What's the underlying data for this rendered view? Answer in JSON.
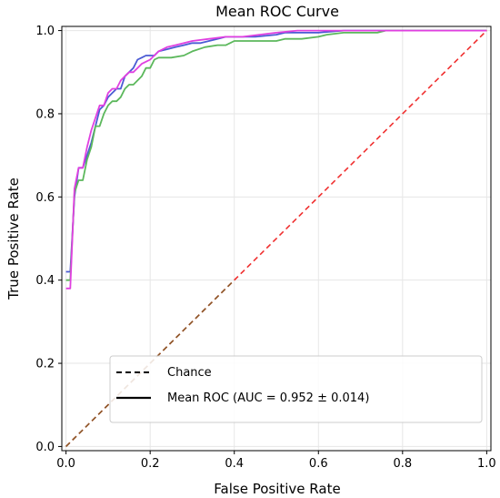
{
  "chart_data": {
    "type": "line",
    "title": "Mean ROC Curve",
    "xlabel": "False Positive Rate",
    "ylabel": "True Positive Rate",
    "xlim": [
      -0.01,
      1.01
    ],
    "ylim": [
      -0.01,
      1.01
    ],
    "xticks": [
      "0.0",
      "0.2",
      "0.4",
      "0.6",
      "0.8",
      "1.0"
    ],
    "yticks": [
      "0.0",
      "0.2",
      "0.4",
      "0.6",
      "0.8",
      "1.0"
    ],
    "grid": true,
    "legend": {
      "placement": "lower-right",
      "entries": [
        {
          "label": "Chance",
          "style": "dashed",
          "color": "#000000"
        },
        {
          "label": "Mean ROC (AUC = 0.952 ± 0.014)",
          "style": "solid",
          "color": "#000000"
        }
      ]
    },
    "series": [
      {
        "color": "#4b5bd4",
        "style": "solid",
        "points": [
          [
            0.0,
            0.42
          ],
          [
            0.01,
            0.42
          ],
          [
            0.02,
            0.6
          ],
          [
            0.03,
            0.67
          ],
          [
            0.04,
            0.67
          ],
          [
            0.05,
            0.7
          ],
          [
            0.06,
            0.73
          ],
          [
            0.07,
            0.77
          ],
          [
            0.08,
            0.81
          ],
          [
            0.09,
            0.82
          ],
          [
            0.1,
            0.84
          ],
          [
            0.11,
            0.85
          ],
          [
            0.12,
            0.86
          ],
          [
            0.13,
            0.86
          ],
          [
            0.14,
            0.89
          ],
          [
            0.15,
            0.9
          ],
          [
            0.16,
            0.91
          ],
          [
            0.17,
            0.93
          ],
          [
            0.18,
            0.935
          ],
          [
            0.19,
            0.94
          ],
          [
            0.2,
            0.94
          ],
          [
            0.21,
            0.94
          ],
          [
            0.22,
            0.95
          ],
          [
            0.24,
            0.955
          ],
          [
            0.26,
            0.96
          ],
          [
            0.28,
            0.965
          ],
          [
            0.3,
            0.97
          ],
          [
            0.32,
            0.97
          ],
          [
            0.34,
            0.975
          ],
          [
            0.36,
            0.98
          ],
          [
            0.38,
            0.985
          ],
          [
            0.4,
            0.985
          ],
          [
            0.45,
            0.985
          ],
          [
            0.5,
            0.99
          ],
          [
            0.52,
            0.995
          ],
          [
            0.6,
            0.995
          ],
          [
            0.66,
            1.0
          ],
          [
            0.75,
            1.0
          ],
          [
            1.0,
            1.0
          ]
        ]
      },
      {
        "color": "#5cb85c",
        "style": "solid",
        "points": [
          [
            0.0,
            0.4
          ],
          [
            0.01,
            0.4
          ],
          [
            0.02,
            0.61
          ],
          [
            0.03,
            0.64
          ],
          [
            0.04,
            0.64
          ],
          [
            0.05,
            0.69
          ],
          [
            0.06,
            0.72
          ],
          [
            0.07,
            0.77
          ],
          [
            0.08,
            0.77
          ],
          [
            0.09,
            0.8
          ],
          [
            0.1,
            0.82
          ],
          [
            0.11,
            0.83
          ],
          [
            0.12,
            0.83
          ],
          [
            0.13,
            0.84
          ],
          [
            0.14,
            0.86
          ],
          [
            0.15,
            0.87
          ],
          [
            0.16,
            0.87
          ],
          [
            0.17,
            0.88
          ],
          [
            0.18,
            0.89
          ],
          [
            0.19,
            0.91
          ],
          [
            0.2,
            0.91
          ],
          [
            0.21,
            0.93
          ],
          [
            0.22,
            0.935
          ],
          [
            0.25,
            0.935
          ],
          [
            0.28,
            0.94
          ],
          [
            0.3,
            0.95
          ],
          [
            0.33,
            0.96
          ],
          [
            0.36,
            0.965
          ],
          [
            0.38,
            0.965
          ],
          [
            0.4,
            0.975
          ],
          [
            0.5,
            0.975
          ],
          [
            0.52,
            0.98
          ],
          [
            0.56,
            0.98
          ],
          [
            0.6,
            0.985
          ],
          [
            0.62,
            0.99
          ],
          [
            0.66,
            0.995
          ],
          [
            0.74,
            0.995
          ],
          [
            0.76,
            1.0
          ],
          [
            1.0,
            1.0
          ]
        ]
      },
      {
        "color": "#e040e0",
        "style": "solid",
        "points": [
          [
            0.0,
            0.38
          ],
          [
            0.01,
            0.38
          ],
          [
            0.02,
            0.62
          ],
          [
            0.03,
            0.67
          ],
          [
            0.04,
            0.67
          ],
          [
            0.05,
            0.72
          ],
          [
            0.06,
            0.76
          ],
          [
            0.07,
            0.79
          ],
          [
            0.08,
            0.82
          ],
          [
            0.09,
            0.82
          ],
          [
            0.1,
            0.85
          ],
          [
            0.11,
            0.86
          ],
          [
            0.12,
            0.86
          ],
          [
            0.13,
            0.88
          ],
          [
            0.14,
            0.89
          ],
          [
            0.15,
            0.9
          ],
          [
            0.16,
            0.9
          ],
          [
            0.17,
            0.91
          ],
          [
            0.18,
            0.92
          ],
          [
            0.19,
            0.925
          ],
          [
            0.2,
            0.93
          ],
          [
            0.22,
            0.95
          ],
          [
            0.24,
            0.96
          ],
          [
            0.26,
            0.965
          ],
          [
            0.3,
            0.975
          ],
          [
            0.34,
            0.98
          ],
          [
            0.38,
            0.985
          ],
          [
            0.42,
            0.985
          ],
          [
            0.46,
            0.99
          ],
          [
            0.5,
            0.995
          ],
          [
            0.55,
            1.0
          ],
          [
            0.6,
            1.0
          ],
          [
            1.0,
            1.0
          ]
        ]
      },
      {
        "color": "#f03030",
        "style": "dashed",
        "points": [
          [
            0.0,
            0.0
          ],
          [
            1.0,
            1.0
          ]
        ]
      },
      {
        "color": "#8a5a2a",
        "style": "dashed",
        "points": [
          [
            0.0,
            0.0
          ],
          [
            0.4,
            0.4
          ]
        ]
      }
    ]
  }
}
